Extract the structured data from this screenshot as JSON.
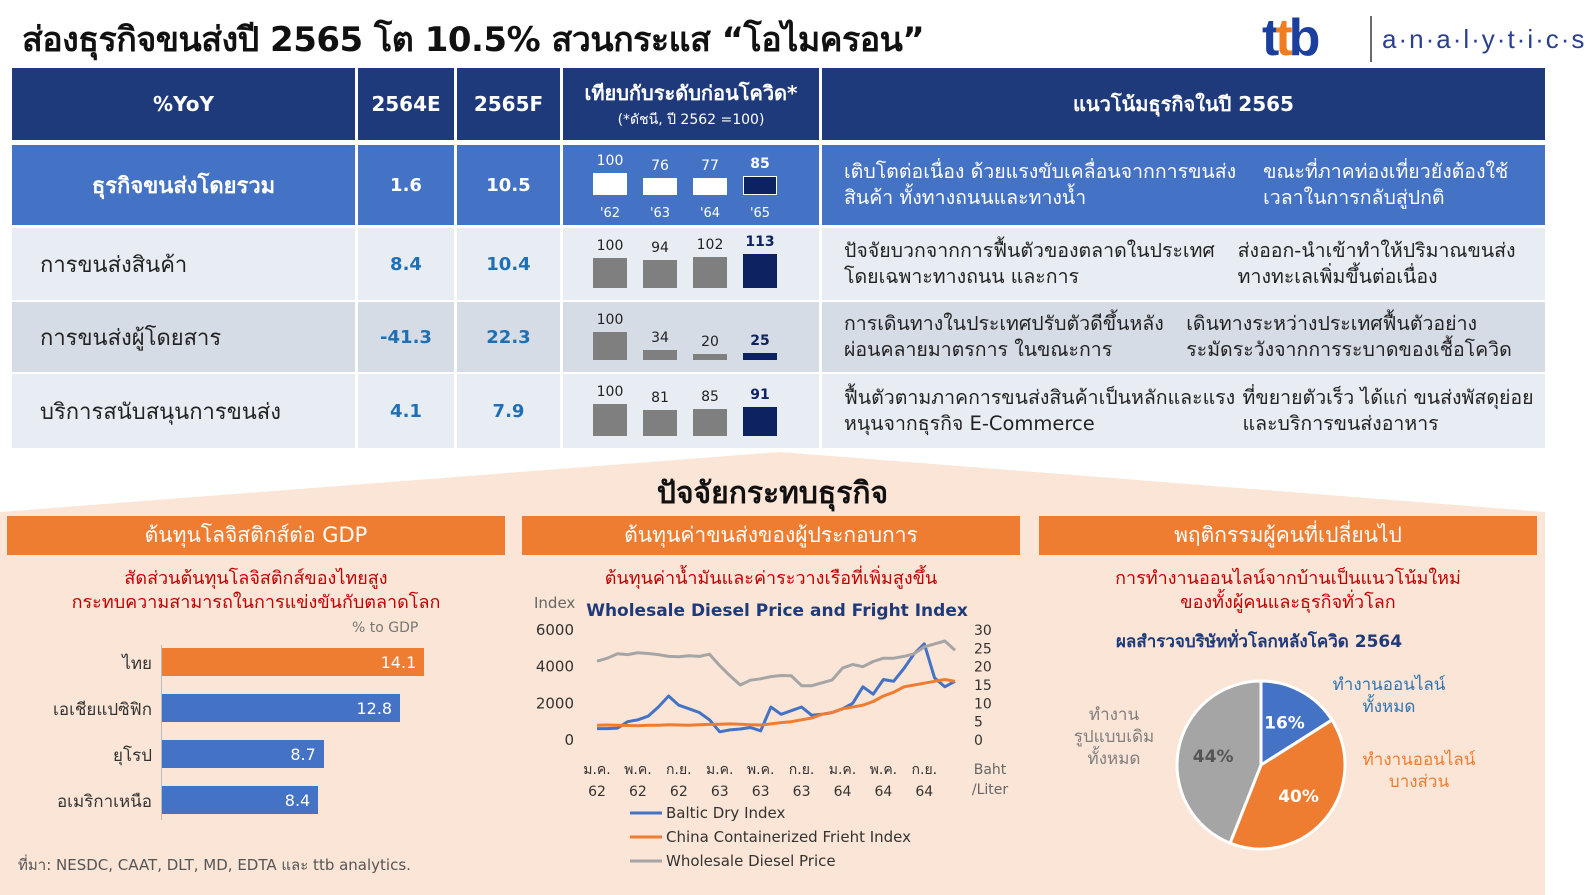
{
  "header": {
    "title": "ส่องธุรกิจขนส่งปี 2565 โต 10.5% สวนกระแส “โอไมครอน”",
    "logo_mark": "ttb",
    "logo_text": "a·n·a·l·y·t·i·c·s"
  },
  "table": {
    "columns": [
      "%YoY",
      "2564E",
      "2565F",
      "เทียบกับระดับก่อนโควิด*",
      "แนวโน้มธุรกิจในปี 2565"
    ],
    "column_note": "(*ดัชนี, ปี 2562 =100)",
    "year_labels": [
      "'62",
      "'63",
      "'64",
      "'65"
    ],
    "rows": [
      {
        "label": "ธุรกิจขนส่งโดยรวม",
        "y2564": "1.6",
        "y2565": "10.5",
        "index": [
          100,
          76,
          77,
          85
        ],
        "desc": [
          "เติบโตต่อเนื่อง ด้วยแรงขับเคลื่อนจากการขนส่งสินค้า ทั้งทางถนนและทางน้ำ",
          "ขณะที่ภาคท่องเที่ยวยังต้องใช้เวลาในการกลับสู่ปกติ"
        ]
      },
      {
        "label": "การขนส่งสินค้า",
        "y2564": "8.4",
        "y2565": "10.4",
        "index": [
          100,
          94,
          102,
          113
        ],
        "desc": [
          "ปัจจัยบวกจากการฟื้นตัวของตลาดในประเทศ โดยเฉพาะทางถนน และการ",
          "ส่งออก-นำเข้าทำให้ปริมาณขนส่งทางทะเลเพิ่มขึ้นต่อเนื่อง"
        ]
      },
      {
        "label": "การขนส่งผู้โดยสาร",
        "y2564": "-41.3",
        "y2565": "22.3",
        "index": [
          100,
          34,
          20,
          25
        ],
        "desc": [
          "การเดินทางในประเทศปรับตัวดีขึ้นหลังผ่อนคลายมาตรการ ในขณะการ",
          "เดินทางระหว่างประเทศฟื้นตัวอย่างระมัดระวังจากการระบาดของเชื้อโควิด"
        ]
      },
      {
        "label": "บริการสนับสนุนการขนส่ง",
        "y2564": "4.1",
        "y2565": "7.9",
        "index": [
          100,
          81,
          85,
          91
        ],
        "desc": [
          "ฟื้นตัวตามภาคการขนส่งสินค้าเป็นหลักและแรงหนุนจากธุรกิจ E-Commerce",
          "ที่ขยายตัวเร็ว ได้แก่ ขนส่งพัสดุย่อยและบริการขนส่งอาหาร"
        ]
      }
    ]
  },
  "factors": {
    "title": "ปัจจัยกระทบธุรกิจ",
    "panels": [
      {
        "header": "ต้นทุนโลจิสติกส์ต่อ GDP",
        "subtitle": [
          "สัดส่วนต้นทุนโลจิสติกส์ของไทยสูง",
          "กระทบความสามารถในการแข่งขันกับตลาดโลก"
        ]
      },
      {
        "header": "ต้นทุนค่าขนส่งของผู้ประกอบการ",
        "subtitle": [
          "ต้นทุนค่าน้ำมันและค่าระวางเรือที่เพิ่มสูงขึ้น"
        ]
      },
      {
        "header": "พฤติกรรมผู้คนที่เปลี่ยนไป",
        "subtitle": [
          "การทำงานออนไลน์จากบ้านเป็นแนวโน้มใหม่",
          "ของทั้งผู้คนและธุรกิจทั่วโลก"
        ]
      }
    ]
  },
  "source": "ที่มา: NESDC, CAAT, DLT, MD, EDTA และ ttb  analytics.",
  "colors": {
    "navy": "#1f3a7a",
    "blue": "#4472c4",
    "orange": "#ee7d31",
    "gray": "#a5a5a5",
    "peach": "#fbe5d6"
  },
  "chart_data": [
    {
      "type": "bar",
      "orientation": "horizontal",
      "unit": "% to GDP",
      "categories": [
        "ไทย",
        "เอเชียแปซิฟิก",
        "ยุโรป",
        "อเมริกาเหนือ"
      ],
      "values": [
        14.1,
        12.8,
        8.7,
        8.4
      ],
      "colors": [
        "#ee7d31",
        "#4472c4",
        "#4472c4",
        "#4472c4"
      ]
    },
    {
      "type": "line",
      "title": "Wholesale Diesel Price and Fright Index",
      "ylabel": "Index",
      "y2label": [
        "Baht",
        "/Liter"
      ],
      "ylim": [
        0,
        6000
      ],
      "yticks": [
        0,
        2000,
        4000,
        6000
      ],
      "y2lim": [
        0,
        30
      ],
      "y2ticks": [
        0,
        5,
        10,
        15,
        20,
        25,
        30
      ],
      "xticks": [
        [
          "ม.ค.",
          "62"
        ],
        [
          "พ.ค.",
          "62"
        ],
        [
          "ก.ย.",
          "62"
        ],
        [
          "ม.ค.",
          "63"
        ],
        [
          "พ.ค.",
          "63"
        ],
        [
          "ก.ย.",
          "63"
        ],
        [
          "ม.ค.",
          "64"
        ],
        [
          "พ.ค.",
          "64"
        ],
        [
          "ก.ย.",
          "64"
        ]
      ],
      "legend_position": "bottom",
      "series": [
        {
          "name": "Baltic Dry Index",
          "axis": "left",
          "color": "#4472c4",
          "values": [
            620,
            620,
            650,
            1000,
            1100,
            1300,
            1800,
            2400,
            1900,
            1700,
            1500,
            1100,
            450,
            550,
            600,
            680,
            500,
            1800,
            1400,
            1600,
            1800,
            1350,
            1400,
            1500,
            1700,
            2000,
            2900,
            2500,
            3300,
            3200,
            3900,
            4700,
            5250,
            3400,
            2900,
            3200
          ]
        },
        {
          "name": "China Containerized Frieht Index",
          "axis": "left",
          "color": "#ee7d31",
          "values": [
            800,
            820,
            810,
            790,
            780,
            800,
            810,
            830,
            820,
            810,
            830,
            850,
            860,
            880,
            860,
            830,
            820,
            880,
            950,
            1000,
            1100,
            1200,
            1400,
            1500,
            1700,
            1800,
            1900,
            2100,
            2400,
            2600,
            2900,
            3000,
            3100,
            3200,
            3300,
            3200
          ]
        },
        {
          "name": "Wholesale Diesel Price",
          "axis": "right",
          "color": "#a5a5a5",
          "values": [
            21.5,
            22.3,
            23.5,
            23.3,
            23.8,
            23.6,
            23.3,
            22.8,
            22.7,
            23.0,
            22.8,
            23.4,
            20.3,
            17.5,
            15.0,
            16.3,
            16.7,
            17.3,
            17.6,
            17.5,
            14.8,
            14.8,
            15.6,
            16.4,
            19.6,
            20.6,
            20.0,
            21.4,
            22.3,
            22.3,
            22.8,
            23.5,
            25.4,
            26.2,
            27.0,
            24.5
          ]
        }
      ]
    },
    {
      "type": "pie",
      "title": "ผลสำรวจบริษัททั่วโลกหลังโควิด 2564",
      "slices": [
        {
          "label": "ทำงานออนไลน์ ทั้งหมด",
          "label_lines": [
            "ทำงานออนไลน์",
            "ทั้งหมด"
          ],
          "value": 16,
          "color": "#4472c4",
          "label_color": "#2e75b6"
        },
        {
          "label": "ทำงานออนไลน์ บางส่วน",
          "label_lines": [
            "ทำงานออนไลน์",
            "บางส่วน"
          ],
          "value": 40,
          "color": "#ee7d31",
          "label_color": "#ee7d31"
        },
        {
          "label": "ทำงาน รูปแบบเดิม ทั้งหมด",
          "label_lines": [
            "ทำงาน",
            "รูปแบบเดิม",
            "ทั้งหมด"
          ],
          "value": 44,
          "color": "#a5a5a5",
          "label_color": "#7f7f7f"
        }
      ]
    }
  ]
}
